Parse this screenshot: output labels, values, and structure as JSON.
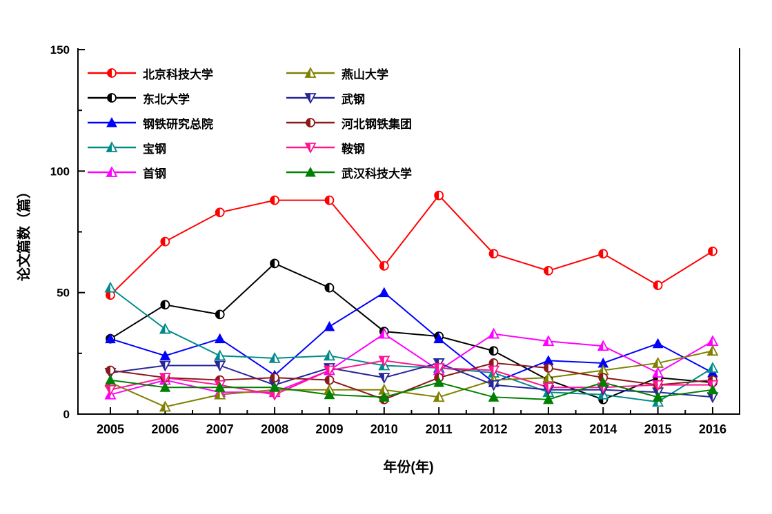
{
  "chart_data": {
    "type": "line",
    "title": "",
    "xlabel": "年份(年)",
    "ylabel": "论文篇数（篇）",
    "x": [
      2005,
      2006,
      2007,
      2008,
      2009,
      2010,
      2011,
      2012,
      2013,
      2014,
      2015,
      2016
    ],
    "ylim": [
      0,
      150
    ],
    "yticks": [
      0,
      50,
      100,
      150
    ],
    "yminorticks": [
      25,
      75,
      125
    ],
    "grid": false,
    "legend_position": "top-left-inside",
    "background_color": "#ffffff",
    "axis_color": "#000000",
    "series": [
      {
        "name": "北京科技大学",
        "color": "#ff0000",
        "marker": "circle-half",
        "values": [
          49,
          71,
          83,
          88,
          88,
          61,
          90,
          66,
          59,
          66,
          53,
          67
        ]
      },
      {
        "name": "东北大学",
        "color": "#000000",
        "marker": "circle-half",
        "values": [
          31,
          45,
          41,
          62,
          52,
          34,
          32,
          26,
          14,
          6,
          15,
          13
        ]
      },
      {
        "name": "钢铁研究总院",
        "color": "#0000ff",
        "marker": "triangle",
        "values": [
          31,
          24,
          31,
          16,
          36,
          50,
          31,
          13,
          22,
          21,
          29,
          17
        ]
      },
      {
        "name": "宝钢",
        "color": "#008b8b",
        "marker": "triangle-half",
        "values": [
          52,
          35,
          24,
          23,
          24,
          20,
          19,
          17,
          9,
          8,
          5,
          19
        ]
      },
      {
        "name": "首钢",
        "color": "#ff00ff",
        "marker": "triangle-half",
        "values": [
          8,
          14,
          9,
          9,
          18,
          33,
          18,
          33,
          30,
          28,
          17,
          30
        ]
      },
      {
        "name": "燕山大学",
        "color": "#808000",
        "marker": "triangle-half",
        "values": [
          13,
          3,
          8,
          10,
          10,
          10,
          7,
          14,
          15,
          18,
          21,
          26
        ]
      },
      {
        "name": "武钢",
        "color": "#262699",
        "marker": "triangle-down-half",
        "values": [
          17,
          20,
          20,
          12,
          19,
          15,
          21,
          12,
          10,
          10,
          9,
          7
        ]
      },
      {
        "name": "河北钢铁集团",
        "color": "#8b1a1a",
        "marker": "circle-half",
        "values": [
          18,
          15,
          14,
          15,
          14,
          6,
          15,
          21,
          19,
          15,
          12,
          14
        ]
      },
      {
        "name": "鞍钢",
        "color": "#ff1493",
        "marker": "triangle-down-half",
        "values": [
          10,
          15,
          12,
          8,
          18,
          22,
          19,
          18,
          11,
          11,
          12,
          12
        ]
      },
      {
        "name": "武汉科技大学",
        "color": "#008000",
        "marker": "triangle",
        "values": [
          14,
          11,
          11,
          11,
          8,
          7,
          13,
          7,
          6,
          13,
          7,
          10
        ]
      }
    ]
  }
}
